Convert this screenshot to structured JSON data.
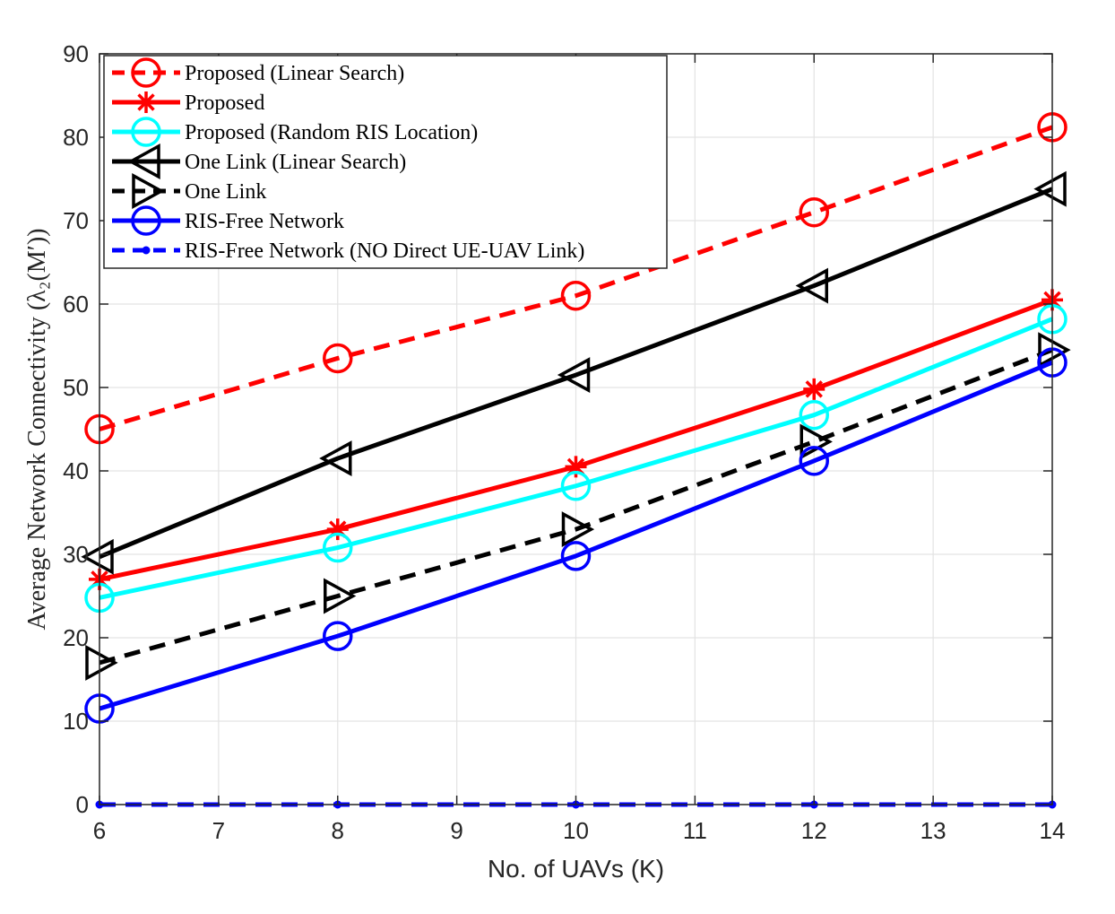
{
  "chart_data": {
    "type": "line",
    "xlabel": "No. of UAVs (K)",
    "ylabel": "Average Network Connectivity (λ₂(M′))",
    "xlim": [
      6,
      14
    ],
    "ylim": [
      0,
      90
    ],
    "xticks": [
      6,
      7,
      8,
      9,
      10,
      11,
      12,
      13,
      14
    ],
    "yticks": [
      0,
      10,
      20,
      30,
      40,
      50,
      60,
      70,
      80,
      90
    ],
    "grid": true,
    "legend_position": "top-left",
    "x": [
      6,
      8,
      10,
      12,
      14
    ],
    "series": [
      {
        "name": "Proposed (Linear Search)",
        "values": [
          45,
          53.5,
          61,
          71,
          81.2
        ],
        "color": "#ff0000",
        "dash": "dashed",
        "marker": "circle"
      },
      {
        "name": "Proposed",
        "values": [
          27,
          33,
          40.5,
          49.8,
          60.5
        ],
        "color": "#ff0000",
        "dash": "solid",
        "marker": "asterisk"
      },
      {
        "name": "Proposed (Random RIS Location)",
        "values": [
          24.8,
          30.8,
          38.2,
          46.7,
          58.2
        ],
        "color": "#00ffff",
        "dash": "solid",
        "marker": "circle"
      },
      {
        "name": "One Link (Linear Search)",
        "values": [
          29.7,
          41.5,
          51.5,
          62.2,
          73.8
        ],
        "color": "#000000",
        "dash": "solid",
        "marker": "triangle-left"
      },
      {
        "name": "One Link",
        "values": [
          17,
          25,
          33,
          43.5,
          54.5
        ],
        "color": "#000000",
        "dash": "dashed",
        "marker": "triangle-right"
      },
      {
        "name": "RIS-Free Network",
        "values": [
          11.5,
          20.2,
          29.8,
          41.2,
          53
        ],
        "color": "#0000ff",
        "dash": "solid",
        "marker": "circle"
      },
      {
        "name": "RIS-Free Network (NO Direct UE-UAV Link)",
        "values": [
          0,
          0,
          0,
          0,
          0
        ],
        "color": "#0000ff",
        "dash": "dashed",
        "marker": "dot"
      }
    ]
  }
}
